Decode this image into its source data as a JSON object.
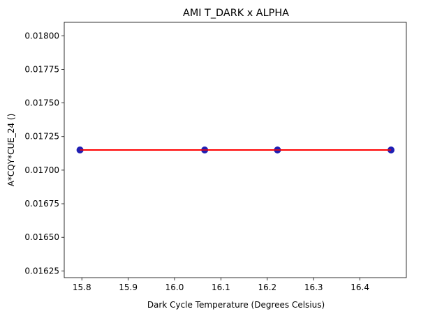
{
  "chart_data": {
    "type": "scatter",
    "title": "AMI T_DARK x ALPHA",
    "xlabel": "Dark Cycle Temperature (Degrees Celsius)",
    "ylabel": "A*CQY*CUE_24 ()",
    "xlim": [
      15.762,
      16.5
    ],
    "ylim": [
      0.0162,
      0.0181
    ],
    "x_ticks": [
      15.8,
      15.9,
      16.0,
      16.1,
      16.2,
      16.3,
      16.4
    ],
    "x_tick_labels": [
      "15.8",
      "15.9",
      "16.0",
      "16.1",
      "16.2",
      "16.3",
      "16.4"
    ],
    "y_ticks": [
      0.01625,
      0.0165,
      0.01675,
      0.017,
      0.01725,
      0.0175,
      0.01775,
      0.018
    ],
    "y_tick_labels": [
      "0.01625",
      "0.01650",
      "0.01675",
      "0.01700",
      "0.01725",
      "0.01750",
      "0.01775",
      "0.01800"
    ],
    "grid": false,
    "series": [
      {
        "kind": "scatter",
        "x": [
          15.796,
          16.065,
          16.222,
          16.467
        ],
        "y": [
          0.01715,
          0.01715,
          0.01715,
          0.01715
        ],
        "color": "#1f1fb4"
      },
      {
        "kind": "line",
        "x": [
          15.796,
          16.467
        ],
        "y": [
          0.01715,
          0.01715
        ],
        "color": "#ff0000"
      }
    ]
  }
}
